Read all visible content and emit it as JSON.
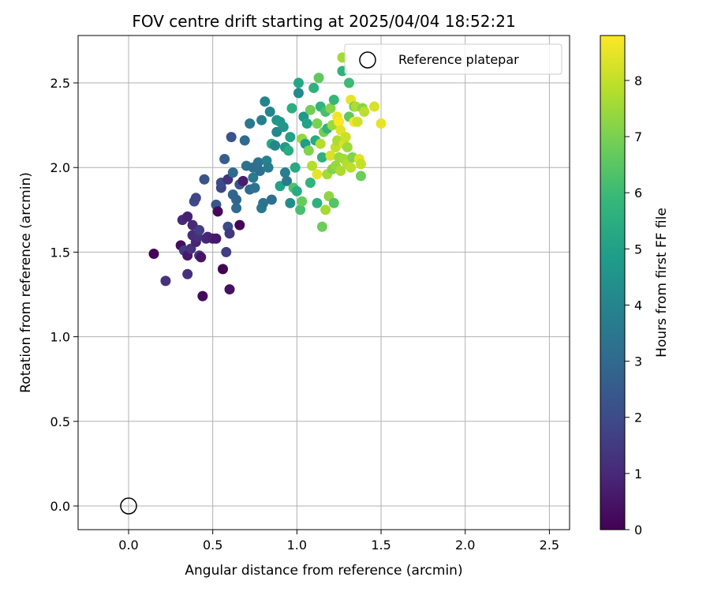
{
  "chart_data": {
    "type": "scatter",
    "title": "FOV centre drift starting at 2025/04/04 18:52:21",
    "xlabel": "Angular distance from reference (arcmin)",
    "ylabel": "Rotation from reference (arcmin)",
    "xlim": [
      -0.3,
      2.62
    ],
    "ylim": [
      -0.14,
      2.78
    ],
    "xticks": [
      0.0,
      0.5,
      1.0,
      1.5,
      2.0,
      2.5
    ],
    "yticks": [
      0.0,
      0.5,
      1.0,
      1.5,
      2.0,
      2.5
    ],
    "xtick_labels": [
      "0.0",
      "0.5",
      "1.0",
      "1.5",
      "2.0",
      "2.5"
    ],
    "ytick_labels": [
      "0.0",
      "0.5",
      "1.0",
      "1.5",
      "2.0",
      "2.5"
    ],
    "grid": true,
    "legend": {
      "location": "top-right",
      "entries": [
        "Reference platepar"
      ]
    },
    "reference_point": {
      "x": 0.0,
      "y": 0.0
    },
    "colorbar": {
      "label": "Hours from first FF file",
      "colormap": "viridis",
      "range": [
        0,
        8.8
      ],
      "ticks": [
        0,
        1,
        2,
        3,
        4,
        5,
        6,
        7,
        8
      ],
      "tick_labels": [
        "0",
        "1",
        "2",
        "3",
        "4",
        "5",
        "6",
        "7",
        "8"
      ]
    },
    "points": [
      [
        0.15,
        1.49,
        0.1
      ],
      [
        0.22,
        1.33,
        1.3
      ],
      [
        0.31,
        1.54,
        0.3
      ],
      [
        0.32,
        1.69,
        1.0
      ],
      [
        0.33,
        1.51,
        1.5
      ],
      [
        0.35,
        1.48,
        0.6
      ],
      [
        0.35,
        1.71,
        0.8
      ],
      [
        0.35,
        1.37,
        1.2
      ],
      [
        0.37,
        1.52,
        1.3
      ],
      [
        0.38,
        1.66,
        1.0
      ],
      [
        0.38,
        1.6,
        1.1
      ],
      [
        0.39,
        1.8,
        2.0
      ],
      [
        0.4,
        1.82,
        1.8
      ],
      [
        0.4,
        1.56,
        0.9
      ],
      [
        0.41,
        1.59,
        1.2
      ],
      [
        0.42,
        1.63,
        1.6
      ],
      [
        0.42,
        1.48,
        1.4
      ],
      [
        0.43,
        1.47,
        0.5
      ],
      [
        0.44,
        1.24,
        0.2
      ],
      [
        0.45,
        1.93,
        2.2
      ],
      [
        0.46,
        1.58,
        1.1
      ],
      [
        0.47,
        1.59,
        0.9
      ],
      [
        0.5,
        1.58,
        0.8
      ],
      [
        0.52,
        1.58,
        0.6
      ],
      [
        0.52,
        1.78,
        2.4
      ],
      [
        0.53,
        1.74,
        0.2
      ],
      [
        0.55,
        1.88,
        1.8
      ],
      [
        0.55,
        1.91,
        2.0
      ],
      [
        0.56,
        1.4,
        0.0
      ],
      [
        0.57,
        2.05,
        2.6
      ],
      [
        0.58,
        1.5,
        1.6
      ],
      [
        0.59,
        1.65,
        2.0
      ],
      [
        0.59,
        1.93,
        1.3
      ],
      [
        0.6,
        1.28,
        0.4
      ],
      [
        0.6,
        1.61,
        1.4
      ],
      [
        0.61,
        2.18,
        2.2
      ],
      [
        0.62,
        1.97,
        3.0
      ],
      [
        0.62,
        1.84,
        2.9
      ],
      [
        0.64,
        1.76,
        3.0
      ],
      [
        0.64,
        1.81,
        2.8
      ],
      [
        0.66,
        1.66,
        0.1
      ],
      [
        0.66,
        1.9,
        2.3
      ],
      [
        0.68,
        1.92,
        0.7
      ],
      [
        0.69,
        2.16,
        3.0
      ],
      [
        0.7,
        2.01,
        3.3
      ],
      [
        0.72,
        1.87,
        3.1
      ],
      [
        0.72,
        2.26,
        3.5
      ],
      [
        0.74,
        2.0,
        3.2
      ],
      [
        0.74,
        1.94,
        3.6
      ],
      [
        0.75,
        1.88,
        3.3
      ],
      [
        0.77,
        2.03,
        3.3
      ],
      [
        0.78,
        1.98,
        3.2
      ],
      [
        0.79,
        2.28,
        3.8
      ],
      [
        0.79,
        1.76,
        3.6
      ],
      [
        0.8,
        1.79,
        3.4
      ],
      [
        0.81,
        2.39,
        4.0
      ],
      [
        0.82,
        2.04,
        3.9
      ],
      [
        0.83,
        2.0,
        3.7
      ],
      [
        0.84,
        2.33,
        4.0
      ],
      [
        0.85,
        2.14,
        5.3
      ],
      [
        0.85,
        1.81,
        3.2
      ],
      [
        0.87,
        2.13,
        4.0
      ],
      [
        0.88,
        2.28,
        4.5
      ],
      [
        0.88,
        2.21,
        4.1
      ],
      [
        0.9,
        2.27,
        4.6
      ],
      [
        0.9,
        1.89,
        5.0
      ],
      [
        0.92,
        2.24,
        4.6
      ],
      [
        0.93,
        2.12,
        4.8
      ],
      [
        0.93,
        1.97,
        3.8
      ],
      [
        0.94,
        1.92,
        3.6
      ],
      [
        0.95,
        2.1,
        5.4
      ],
      [
        0.96,
        2.18,
        5.0
      ],
      [
        0.96,
        1.79,
        4.3
      ],
      [
        0.97,
        2.35,
        5.5
      ],
      [
        0.98,
        1.88,
        6.3
      ],
      [
        0.99,
        2.0,
        5.3
      ],
      [
        1.0,
        1.86,
        5.4
      ],
      [
        1.01,
        2.5,
        5.2
      ],
      [
        1.01,
        2.44,
        4.2
      ],
      [
        1.02,
        1.75,
        6.2
      ],
      [
        1.03,
        1.8,
        6.7
      ],
      [
        1.03,
        2.17,
        7.4
      ],
      [
        1.04,
        2.3,
        4.6
      ],
      [
        1.05,
        2.14,
        4.9
      ],
      [
        1.06,
        2.26,
        5.1
      ],
      [
        1.07,
        2.1,
        7.1
      ],
      [
        1.08,
        1.91,
        5.7
      ],
      [
        1.08,
        2.34,
        6.9
      ],
      [
        1.09,
        2.01,
        7.8
      ],
      [
        1.1,
        2.47,
        5.6
      ],
      [
        1.11,
        2.16,
        5.3
      ],
      [
        1.12,
        1.96,
        8.5
      ],
      [
        1.12,
        1.79,
        5.6
      ],
      [
        1.12,
        2.26,
        7.0
      ],
      [
        1.13,
        2.53,
        6.6
      ],
      [
        1.14,
        2.14,
        7.8
      ],
      [
        1.14,
        2.36,
        5.7
      ],
      [
        1.15,
        2.06,
        5.6
      ],
      [
        1.15,
        1.65,
        6.8
      ],
      [
        1.16,
        2.21,
        6.9
      ],
      [
        1.17,
        1.75,
        7.6
      ],
      [
        1.17,
        2.33,
        6.2
      ],
      [
        1.18,
        1.96,
        7.6
      ],
      [
        1.18,
        2.23,
        5.7
      ],
      [
        1.19,
        1.83,
        7.3
      ],
      [
        1.2,
        2.07,
        8.3
      ],
      [
        1.2,
        2.35,
        7.2
      ],
      [
        1.21,
        1.99,
        7.1
      ],
      [
        1.21,
        2.25,
        7.5
      ],
      [
        1.22,
        1.79,
        6.4
      ],
      [
        1.22,
        2.4,
        5.8
      ],
      [
        1.23,
        2.01,
        7.4
      ],
      [
        1.23,
        2.12,
        8.0
      ],
      [
        1.24,
        2.3,
        8.6
      ],
      [
        1.24,
        2.16,
        7.7
      ],
      [
        1.25,
        2.06,
        7.5
      ],
      [
        1.25,
        2.27,
        8.8
      ],
      [
        1.26,
        2.22,
        8.4
      ],
      [
        1.26,
        1.98,
        7.7
      ],
      [
        1.27,
        2.65,
        7.6
      ],
      [
        1.27,
        2.57,
        5.6
      ],
      [
        1.28,
        2.05,
        7.6
      ],
      [
        1.28,
        2.14,
        8.3
      ],
      [
        1.29,
        2.18,
        8.1
      ],
      [
        1.3,
        2.12,
        7.5
      ],
      [
        1.3,
        2.02,
        7.8
      ],
      [
        1.31,
        2.5,
        6.0
      ],
      [
        1.31,
        2.3,
        6.6
      ],
      [
        1.32,
        2.4,
        8.5
      ],
      [
        1.32,
        2.0,
        7.9
      ],
      [
        1.33,
        2.06,
        7.1
      ],
      [
        1.34,
        2.27,
        8.7
      ],
      [
        1.34,
        2.36,
        6.9
      ],
      [
        1.35,
        2.36,
        7.7
      ],
      [
        1.36,
        2.27,
        8.2
      ],
      [
        1.37,
        2.05,
        8.4
      ],
      [
        1.38,
        2.02,
        8.0
      ],
      [
        1.38,
        1.95,
        6.8
      ],
      [
        1.39,
        2.35,
        7.2
      ],
      [
        1.4,
        2.33,
        7.9
      ],
      [
        1.46,
        2.36,
        8.3
      ],
      [
        1.5,
        2.26,
        8.5
      ]
    ]
  }
}
